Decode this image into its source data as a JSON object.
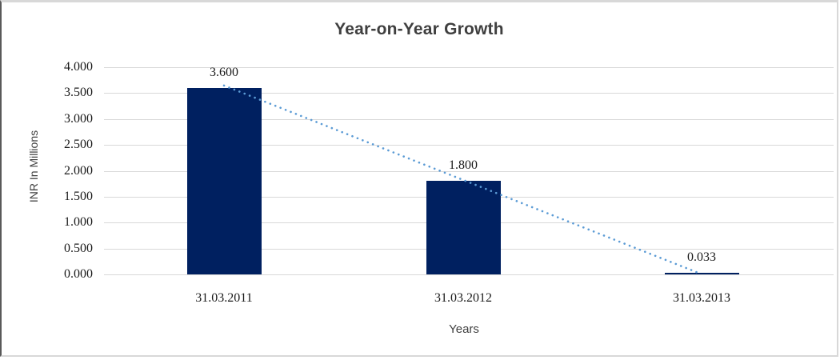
{
  "chart_data": {
    "type": "bar",
    "title": "Year-on-Year Growth",
    "xlabel": "Years",
    "ylabel": "INR In Millions",
    "categories": [
      "31.03.2011",
      "31.03.2012",
      "31.03.2013"
    ],
    "values": [
      3.6,
      1.8,
      0.033
    ],
    "data_labels": [
      "3.600",
      "1.800",
      "0.033"
    ],
    "y_ticks": [
      {
        "value": 4.0,
        "label": "4.000"
      },
      {
        "value": 3.5,
        "label": "3.500"
      },
      {
        "value": 3.0,
        "label": "3.000"
      },
      {
        "value": 2.5,
        "label": "2.500"
      },
      {
        "value": 2.0,
        "label": "2.000"
      },
      {
        "value": 1.5,
        "label": "1.500"
      },
      {
        "value": 1.0,
        "label": "1.000"
      },
      {
        "value": 0.5,
        "label": "0.500"
      },
      {
        "value": 0.0,
        "label": "0.000"
      }
    ],
    "ylim": [
      0,
      4
    ],
    "grid": true,
    "legend": "none",
    "colors": {
      "bar": "#002060",
      "trendline": "#5b9bd5",
      "gridline": "#d9d9d9",
      "title_text": "#3f3f3f",
      "axis_title_text": "#404040",
      "tick_text": "#1a1a1a"
    },
    "trendline": {
      "type": "linear",
      "style": "dotted",
      "from_category": "31.03.2011",
      "from_value": 3.6,
      "to_category": "31.03.2013",
      "to_value": 0.033
    }
  }
}
